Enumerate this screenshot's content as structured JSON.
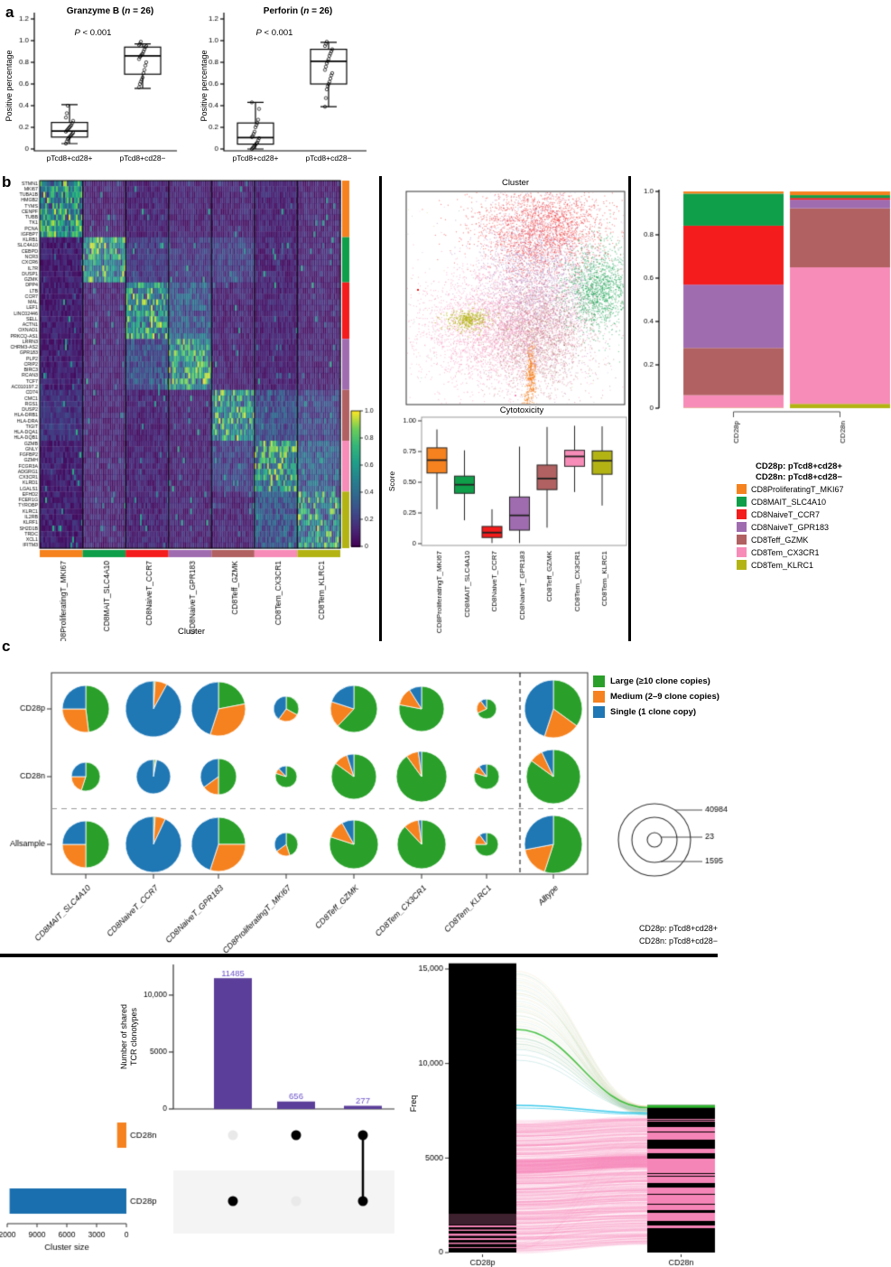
{
  "texts": {
    "panel_a": "a",
    "panel_b": "b",
    "panel_c": "c",
    "note1": "CD28p: pTcd8+cd28+",
    "note2": "CD28n: pTcd8+cd28−"
  },
  "cluster_colors": {
    "CD8ProliferatingT_MKI67": "#F5821F",
    "CD8MAIT_SLC4A10": "#0F9E4A",
    "CD8NaiveT_CCR7": "#F41C1C",
    "CD8NaiveT_GPR183": "#A06CB0",
    "CD8Teff_GZMK": "#B16161",
    "CD8Tem_CX3CR1": "#F78CB8",
    "CD8Tem_KLRC1": "#B3B414"
  },
  "chart_data": [
    {
      "type": "box",
      "title_pre": "Granzyme B (",
      "title_it": "n",
      "title_post": " = 26)",
      "p_it": "P",
      "p_rest": " < 0.001",
      "ylabel": "Positive percentage",
      "ylim": [
        0,
        1.2
      ],
      "yticks": [
        "0",
        "0.2",
        "0.4",
        "0.6",
        "0.8",
        "1.0",
        "1.2"
      ],
      "categories": [
        "pTcd8+cd28+",
        "pTcd8+cd28−"
      ],
      "boxes": [
        {
          "low": 0.05,
          "q1": 0.11,
          "med": 0.165,
          "q3": 0.245,
          "high": 0.41,
          "points": [
            0.05,
            0.07,
            0.09,
            0.1,
            0.11,
            0.12,
            0.13,
            0.14,
            0.15,
            0.16,
            0.17,
            0.18,
            0.19,
            0.2,
            0.21,
            0.22,
            0.24,
            0.26,
            0.29,
            0.33,
            0.4
          ]
        },
        {
          "low": 0.56,
          "q1": 0.69,
          "med": 0.86,
          "q3": 0.94,
          "high": 0.97,
          "points": [
            0.57,
            0.6,
            0.62,
            0.64,
            0.66,
            0.7,
            0.73,
            0.77,
            0.8,
            0.83,
            0.85,
            0.86,
            0.87,
            0.88,
            0.9,
            0.92,
            0.94,
            0.95,
            0.96,
            0.97,
            0.99
          ]
        }
      ]
    },
    {
      "type": "box",
      "title_pre": "Perforin (",
      "title_it": "n",
      "title_post": " = 26)",
      "p_it": "P",
      "p_rest": " < 0.001",
      "ylabel": "Positive percentage",
      "ylim": [
        0,
        1.2
      ],
      "yticks": [
        "0",
        "0.2",
        "0.4",
        "0.6",
        "0.8",
        "1.0",
        "1.2"
      ],
      "categories": [
        "pTcd8+cd28+",
        "pTcd8+cd28−"
      ],
      "boxes": [
        {
          "low": 0.0,
          "q1": 0.045,
          "med": 0.105,
          "q3": 0.24,
          "high": 0.43,
          "points": [
            0.0,
            0.01,
            0.02,
            0.03,
            0.04,
            0.05,
            0.06,
            0.08,
            0.1,
            0.11,
            0.12,
            0.14,
            0.16,
            0.2,
            0.22,
            0.24,
            0.27,
            0.37,
            0.43
          ]
        },
        {
          "low": 0.39,
          "q1": 0.6,
          "med": 0.81,
          "q3": 0.92,
          "high": 0.985,
          "points": [
            0.39,
            0.47,
            0.55,
            0.58,
            0.6,
            0.62,
            0.65,
            0.68,
            0.7,
            0.73,
            0.76,
            0.79,
            0.81,
            0.83,
            0.86,
            0.88,
            0.9,
            0.92,
            0.95,
            0.97,
            0.99
          ]
        }
      ]
    },
    {
      "type": "heatmap",
      "xlabel": "Cluster",
      "genes": [
        "STMN1",
        "MKI67",
        "TUBA1B",
        "HMGB2",
        "TYMS",
        "CENPF",
        "TUBB",
        "TK1",
        "PCNA",
        "IGFBP7",
        "KLRB1",
        "SLC4A10",
        "CEBPD",
        "NCR3",
        "CXCR6",
        "IL7R",
        "DUSP1",
        "GZMK",
        "DPP4",
        "LTB",
        "CCR7",
        "MAL",
        "LEF1",
        "LINC02446",
        "SELL",
        "ACTN1",
        "OXNAD1",
        "PRKCQ-AS1",
        "LRRN3",
        "CHRM3-AS2",
        "GPR183",
        "PLP2",
        "CRIP2",
        "BIRC3",
        "RCAN3",
        "TCF7",
        "AC010197.2",
        "CD74",
        "CMC1",
        "RGS1",
        "DUSP2",
        "HLA-DRB1",
        "HLA-DRA",
        "TIGIT",
        "HLA-DQA1",
        "HLA-DQB1",
        "GZMB",
        "GNLY",
        "FGFBP2",
        "GZMH",
        "FCGR3A",
        "ADGRG1",
        "CX3CR1",
        "KLRD1",
        "LGALS1",
        "EFHD2",
        "FCER1G",
        "TYROBP",
        "KLRC1",
        "IL2RB",
        "KLRF1",
        "SH2D1B",
        "TRDC",
        "XCL1",
        "IFITM3"
      ],
      "gene_group_counts": [
        10,
        8,
        10,
        9,
        9,
        9,
        10
      ],
      "clusters": [
        "CD8ProliferatingT_MKI67",
        "CD8MAIT_SLC4A10",
        "CD8NaiveT_CCR7",
        "CD8NaiveT_GPR183",
        "CD8Teff_GZMK",
        "CD8Tem_CX3CR1",
        "CD8Tem_KLRC1"
      ],
      "colorbar_ticks": [
        "1.0",
        "0.8",
        "0.6",
        "0.4",
        "0.2",
        "0"
      ]
    },
    {
      "type": "scatter",
      "title": "Cluster"
    },
    {
      "type": "box",
      "title": "Cytotoxicity",
      "ylabel": "Score",
      "yticks": [
        "1.00",
        "0.75",
        "0.50",
        "0.25",
        "0"
      ],
      "categories": [
        "CD8ProliferatingT_MKI67",
        "CD8MAIT_SLC4A10",
        "CD8NaiveT_CCR7",
        "CD8NaiveT_GPR183",
        "CD8Teff_GZMK",
        "CD8Tem_CX3CR1",
        "CD8Tem_KLRC1"
      ],
      "boxes": [
        [
          0.28,
          0.575,
          0.68,
          0.78,
          0.93
        ],
        [
          0.19,
          0.41,
          0.48,
          0.55,
          0.76
        ],
        [
          0.005,
          0.05,
          0.09,
          0.14,
          0.28
        ],
        [
          0.005,
          0.11,
          0.23,
          0.38,
          0.79
        ],
        [
          0.13,
          0.44,
          0.53,
          0.64,
          0.95
        ],
        [
          0.42,
          0.63,
          0.71,
          0.76,
          0.96
        ],
        [
          0.31,
          0.565,
          0.675,
          0.755,
          0.955
        ]
      ]
    },
    {
      "type": "bar",
      "stacked": true,
      "categories": [
        "CD28p",
        "CD28n"
      ],
      "yticks": [
        "1.0",
        "0.8",
        "0.6",
        "0.4",
        "0.2",
        "0"
      ],
      "series": [
        {
          "name": "CD8Tem_KLRC1",
          "values": [
            0.002,
            0.02
          ]
        },
        {
          "name": "CD8Tem_CX3CR1",
          "values": [
            0.058,
            0.63
          ]
        },
        {
          "name": "CD8Teff_GZMK",
          "values": [
            0.218,
            0.272
          ]
        },
        {
          "name": "CD8NaiveT_GPR183",
          "values": [
            0.292,
            0.04
          ]
        },
        {
          "name": "CD8NaiveT_CCR7",
          "values": [
            0.272,
            0.008
          ]
        },
        {
          "name": "CD8MAIT_SLC4A10",
          "values": [
            0.148,
            0.013
          ]
        },
        {
          "name": "CD8ProliferatingT_MKI67",
          "values": [
            0.01,
            0.017
          ]
        }
      ],
      "legend": {
        "header1": "CD28p: pTcd8+cd28+",
        "header2": "CD28n: pTcd8+cd28−",
        "items": [
          "CD8ProliferatingT_MKI67",
          "CD8MAIT_SLC4A10",
          "CD8NaiveT_CCR7",
          "CD8NaiveT_GPR183",
          "CD8Teff_GZMK",
          "CD8Tem_CX3CR1",
          "CD8Tem_KLRC1"
        ]
      }
    },
    {
      "type": "pie",
      "rows": [
        "CD28p",
        "CD28n",
        "Allsample"
      ],
      "columns": [
        "CD8MAIT_SLC4A10",
        "CD8NaiveT_CCR7",
        "CD8NaiveT_GPR183",
        "CD8ProliferatingT_MKI67",
        "CD8Teff_GZMK",
        "CD8Tem_CX3CR1",
        "CD8Tem_KLRC1",
        "Alltype"
      ],
      "legend": [
        {
          "label": "Large (≥10 clone copies)",
          "color": "#2AA02A"
        },
        {
          "label": "Medium (2–9 clone copies)",
          "color": "#F5821F"
        },
        {
          "label": "Single (1 clone copy)",
          "color": "#1F77B4"
        }
      ],
      "slice_order": [
        "large",
        "medium",
        "single"
      ],
      "radii": [
        [
          26,
          31,
          30,
          14,
          26,
          25,
          11,
          32
        ],
        [
          16,
          19,
          20,
          12,
          25,
          28,
          14,
          30
        ],
        [
          26,
          31,
          30,
          13,
          27,
          27,
          13,
          32
        ]
      ],
      "fractions": [
        [
          [
            0.48,
            0.27,
            0.25
          ],
          [
            0.01,
            0.07,
            0.92
          ],
          [
            0.22,
            0.33,
            0.45
          ],
          [
            0.33,
            0.27,
            0.4
          ],
          [
            0.62,
            0.18,
            0.2
          ],
          [
            0.78,
            0.13,
            0.09
          ],
          [
            0.68,
            0.22,
            0.1
          ],
          [
            0.35,
            0.2,
            0.45
          ]
        ],
        [
          [
            0.55,
            0.2,
            0.25
          ],
          [
            0.02,
            0.01,
            0.97
          ],
          [
            0.5,
            0.15,
            0.35
          ],
          [
            0.8,
            0.08,
            0.12
          ],
          [
            0.85,
            0.1,
            0.05
          ],
          [
            0.9,
            0.08,
            0.02
          ],
          [
            0.8,
            0.1,
            0.1
          ],
          [
            0.85,
            0.08,
            0.07
          ]
        ],
        [
          [
            0.5,
            0.25,
            0.25
          ],
          [
            0.01,
            0.06,
            0.93
          ],
          [
            0.25,
            0.3,
            0.45
          ],
          [
            0.45,
            0.2,
            0.35
          ],
          [
            0.8,
            0.12,
            0.08
          ],
          [
            0.88,
            0.1,
            0.02
          ],
          [
            0.75,
            0.15,
            0.1
          ],
          [
            0.55,
            0.17,
            0.28
          ]
        ]
      ],
      "size_legend": {
        "values": [
          "40984",
          "23",
          "1595"
        ],
        "radii": [
          40,
          8,
          25
        ]
      }
    },
    {
      "type": "upset",
      "ylabel_line1": "Number of shared",
      "ylabel_line2": "TCR clonotypes",
      "yticks": [
        "0",
        "5000",
        "10,000"
      ],
      "bar_values": [
        11485,
        656,
        277
      ],
      "bar_labels": [
        "11485",
        "656",
        "277"
      ],
      "bar_color": "#5B3E99",
      "bar_label_color": "#6C50C8",
      "sets": [
        "CD28n",
        "CD28p"
      ],
      "set_sizes": [
        933,
        11762
      ],
      "set_colors": [
        "#F5821F",
        "#1A6FAE"
      ],
      "memberships": [
        [
          "CD28p"
        ],
        [
          "CD28n"
        ],
        [
          "CD28n",
          "CD28p"
        ]
      ],
      "xticks": [
        "2000",
        "9000",
        "6000",
        "3000",
        "0"
      ],
      "xlabel": "Cluster size"
    },
    {
      "type": "alluvial",
      "ylabel": "Freq",
      "yticks": [
        "0",
        "5000",
        "10,000",
        "15,000"
      ],
      "columns": [
        "CD28p",
        "CD28n"
      ],
      "left_total": 15300,
      "right_total": 7800,
      "flow_colors": {
        "pink": "#F685B7",
        "green": "#2EB82E",
        "cyan": "#29C4E8",
        "gold": "#C9A227",
        "bar": "#000000"
      }
    }
  ]
}
